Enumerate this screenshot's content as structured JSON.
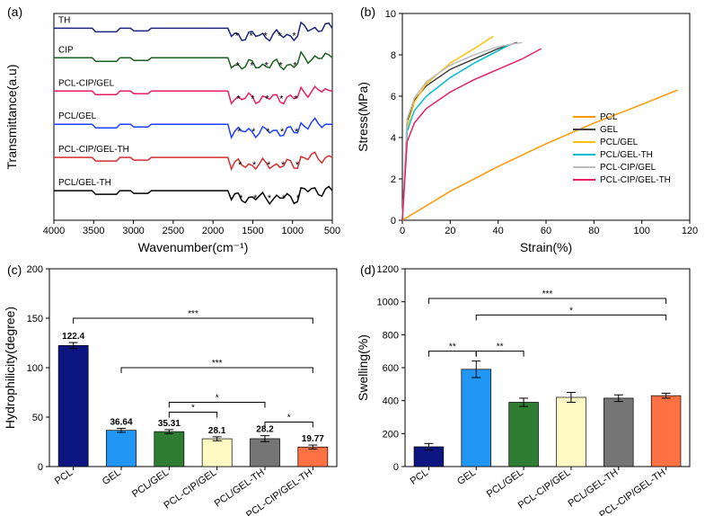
{
  "panel_a": {
    "letter": "(a)",
    "type": "line-spectra",
    "xlabel": "Wavenumber(cm⁻¹)",
    "ylabel": "Transmittance(a.u)",
    "xlim": [
      4000,
      500
    ],
    "xticks": [
      4000,
      3500,
      3000,
      2500,
      2000,
      1500,
      1000,
      500
    ],
    "series": [
      {
        "name": "TH",
        "color": "#1a237e",
        "y": 260
      },
      {
        "name": "CIP",
        "color": "#1b5e20",
        "y": 220
      },
      {
        "name": "PCL-CIP/GEL",
        "color": "#e91e63",
        "y": 175
      },
      {
        "name": "PCL/GEL",
        "color": "#1e3fff",
        "y": 130
      },
      {
        "name": "PCL-CIP/GEL-TH",
        "color": "#d32f2f",
        "y": 85
      },
      {
        "name": "PCL/GEL-TH",
        "color": "#000000",
        "y": 40
      }
    ],
    "background": "#ffffff",
    "axis_color": "#000000"
  },
  "panel_b": {
    "letter": "(b)",
    "type": "line",
    "xlabel": "Strain(%)",
    "ylabel": "Stress(MPa)",
    "xlim": [
      0,
      120
    ],
    "ylim": [
      0,
      10
    ],
    "xticks": [
      0,
      20,
      40,
      60,
      80,
      100,
      120
    ],
    "yticks": [
      0,
      2,
      4,
      6,
      8,
      10
    ],
    "legend": [
      "PCL",
      "GEL",
      "PCL/GEL",
      "PCL/GEL-TH",
      "PCL-CIP/GEL",
      "PCL-CIP/GEL-TH"
    ],
    "legend_colors": [
      "#ff9800",
      "#424242",
      "#ffc107",
      "#00bcd4",
      "#bdbdbd",
      "#e91e63"
    ],
    "series": [
      {
        "name": "PCL",
        "color": "#ff9800",
        "points": [
          [
            0,
            0
          ],
          [
            20,
            1.4
          ],
          [
            40,
            2.6
          ],
          [
            60,
            3.7
          ],
          [
            80,
            4.7
          ],
          [
            100,
            5.6
          ],
          [
            115,
            6.3
          ]
        ]
      },
      {
        "name": "GEL",
        "color": "#424242",
        "points": [
          [
            0,
            0
          ],
          [
            2,
            4.8
          ],
          [
            5,
            5.8
          ],
          [
            10,
            6.5
          ],
          [
            20,
            7.3
          ],
          [
            30,
            7.8
          ],
          [
            40,
            8.3
          ],
          [
            48,
            8.6
          ]
        ]
      },
      {
        "name": "PCL/GEL",
        "color": "#ffc107",
        "points": [
          [
            0,
            0
          ],
          [
            2,
            4.5
          ],
          [
            5,
            5.7
          ],
          [
            10,
            6.6
          ],
          [
            20,
            7.6
          ],
          [
            30,
            8.3
          ],
          [
            38,
            8.9
          ]
        ]
      },
      {
        "name": "PCL/GEL-TH",
        "color": "#00bcd4",
        "points": [
          [
            0,
            0
          ],
          [
            2,
            4.3
          ],
          [
            5,
            5.3
          ],
          [
            10,
            6.0
          ],
          [
            20,
            6.9
          ],
          [
            30,
            7.6
          ],
          [
            40,
            8.2
          ],
          [
            45,
            8.5
          ]
        ]
      },
      {
        "name": "PCL-CIP/GEL",
        "color": "#bdbdbd",
        "points": [
          [
            0,
            0
          ],
          [
            2,
            4.9
          ],
          [
            5,
            5.9
          ],
          [
            10,
            6.7
          ],
          [
            20,
            7.5
          ],
          [
            30,
            8.0
          ],
          [
            40,
            8.4
          ],
          [
            50,
            8.6
          ]
        ]
      },
      {
        "name": "PCL-CIP/GEL-TH",
        "color": "#e91e63",
        "points": [
          [
            0,
            0
          ],
          [
            2,
            3.8
          ],
          [
            5,
            4.7
          ],
          [
            10,
            5.4
          ],
          [
            20,
            6.2
          ],
          [
            30,
            6.8
          ],
          [
            40,
            7.3
          ],
          [
            50,
            7.8
          ],
          [
            58,
            8.3
          ]
        ]
      }
    ],
    "background": "#ffffff",
    "axis_color": "#000000"
  },
  "panel_c": {
    "letter": "(c)",
    "type": "bar",
    "xlabel": "",
    "ylabel": "Hydrophilicity(degree)",
    "ylim": [
      0,
      200
    ],
    "yticks": [
      0,
      50,
      100,
      150,
      200
    ],
    "categories": [
      "PCL",
      "GEL",
      "PCL/GEL",
      "PCL-CIP/GEL",
      "PCL/GEL-TH",
      "PCL-CIP/GEL-TH"
    ],
    "values": [
      122.4,
      36.64,
      35.31,
      28.1,
      28.2,
      19.77
    ],
    "errors": [
      3,
      2,
      2,
      2,
      3,
      2
    ],
    "colors": [
      "#0d1680",
      "#2196f3",
      "#2e7d32",
      "#fff9c4",
      "#757575",
      "#ff7043"
    ],
    "sig_brackets": [
      {
        "from": 0,
        "to": 5,
        "y": 150,
        "label": "***"
      },
      {
        "from": 1,
        "to": 5,
        "y": 100,
        "label": "***"
      },
      {
        "from": 2,
        "to": 3,
        "y": 55,
        "label": "*"
      },
      {
        "from": 2,
        "to": 4,
        "y": 65,
        "label": "*"
      },
      {
        "from": 4,
        "to": 5,
        "y": 45,
        "label": "*"
      }
    ],
    "background": "#ffffff",
    "axis_color": "#000000"
  },
  "panel_d": {
    "letter": "(d)",
    "type": "bar",
    "xlabel": "",
    "ylabel": "Swelling(%)",
    "ylim": [
      0,
      1200
    ],
    "yticks": [
      0,
      200,
      400,
      600,
      800,
      1000,
      1200
    ],
    "categories": [
      "PCL",
      "GEL",
      "PCL/GEL",
      "PCL-CIP/GEL",
      "PCL/GEL-TH",
      "PCL-CIP/GEL-TH"
    ],
    "values": [
      120,
      590,
      390,
      420,
      415,
      430
    ],
    "errors": [
      20,
      50,
      25,
      30,
      20,
      15
    ],
    "colors": [
      "#0d1680",
      "#2196f3",
      "#2e7d32",
      "#fff9c4",
      "#757575",
      "#ff7043"
    ],
    "sig_brackets": [
      {
        "from": 0,
        "to": 5,
        "y": 1020,
        "label": "***"
      },
      {
        "from": 1,
        "to": 5,
        "y": 920,
        "label": "*"
      },
      {
        "from": 0,
        "to": 1,
        "y": 700,
        "label": "**"
      },
      {
        "from": 1,
        "to": 2,
        "y": 700,
        "label": "**"
      }
    ],
    "background": "#ffffff",
    "axis_color": "#000000"
  }
}
